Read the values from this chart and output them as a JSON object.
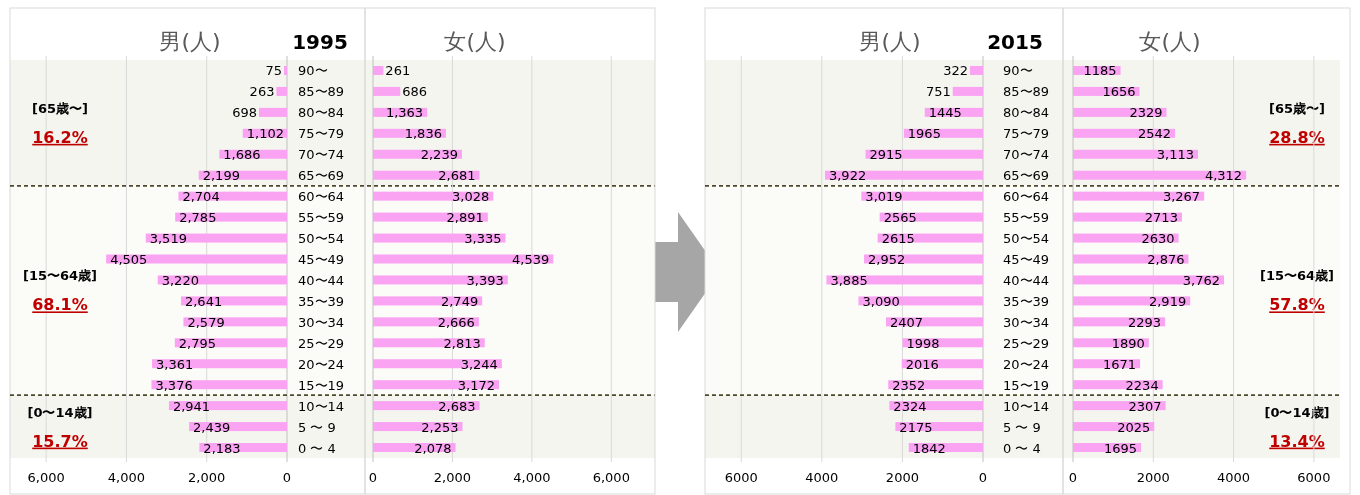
{
  "chart_data": [
    {
      "type": "bar",
      "orientation": "horizontal",
      "title": "男(人)",
      "subtitle": "1995",
      "color": "#f9a3f2",
      "grid": "x",
      "categories": [
        "90〜",
        "85〜89",
        "80〜84",
        "75〜79",
        "70〜74",
        "65〜69",
        "60〜64",
        "55〜59",
        "50〜54",
        "45〜49",
        "40〜44",
        "35〜39",
        "30〜34",
        "25〜29",
        "20〜24",
        "15〜19",
        "10〜14",
        "5 〜 9",
        "0 〜 4"
      ],
      "values": [
        75,
        263,
        698,
        1102,
        1686,
        2199,
        2704,
        2785,
        3519,
        4505,
        3220,
        2641,
        2579,
        2795,
        3361,
        3376,
        2941,
        2439,
        2183
      ],
      "value_labels": [
        "75",
        "263",
        "698",
        "1,102",
        "1,686",
        "2,199",
        "2,704",
        "2,785",
        "3,519",
        "4,505",
        "3,220",
        "2,641",
        "2,579",
        "2,795",
        "3,361",
        "3,376",
        "2,941",
        "2,439",
        "2,183"
      ],
      "xlim": [
        6900,
        0
      ],
      "xticks": [
        {
          "value": 6000,
          "label": "6,000"
        },
        {
          "value": 4000,
          "label": "4,000"
        },
        {
          "value": 2000,
          "label": "2,000"
        },
        0
      ],
      "bands": [
        {
          "axis": "y",
          "from": "90〜",
          "to": "65〜69",
          "label": "[65歳〜]",
          "color": "#f5f5f0"
        },
        {
          "axis": "y",
          "from": "60〜64",
          "to": "15〜19",
          "label": "[15〜64歳]",
          "color": "#fbfbf8"
        },
        {
          "axis": "y",
          "from": "10〜14",
          "to": "0 〜 4",
          "label": "[0〜14歳]",
          "color": "#f5f5f0"
        }
      ],
      "annotations": [
        "16.2%",
        "68.1%",
        "15.7%"
      ]
    },
    {
      "type": "bar",
      "orientation": "horizontal",
      "title": "女(人)",
      "color": "#f9a3f2",
      "grid": "x",
      "categories": [
        null,
        null,
        null,
        null,
        null,
        null,
        null,
        null,
        null,
        null,
        null,
        null,
        null,
        null,
        null,
        null,
        null,
        null,
        null
      ],
      "values": [
        261,
        686,
        1363,
        1836,
        2239,
        2681,
        3028,
        2891,
        3335,
        4539,
        3393,
        2749,
        2666,
        2813,
        3244,
        3172,
        2683,
        2253,
        2078
      ],
      "value_labels": [
        "261",
        "686",
        "1,363",
        "1,836",
        "2,239",
        "2,681",
        "3,028",
        "2,891",
        "3,335",
        "4,539",
        "3,393",
        "2,749",
        "2,666",
        "2,813",
        "3,244",
        "3,172",
        "2,683",
        "2,253",
        "2,078"
      ],
      "xlim": [
        0,
        7100
      ],
      "xticks": [
        0,
        {
          "value": 2000,
          "label": "2,000"
        },
        {
          "value": 4000,
          "label": "4,000"
        },
        {
          "value": 6000,
          "label": "6,000"
        }
      ]
    },
    {
      "type": "bar",
      "orientation": "horizontal",
      "title": "男(人)",
      "subtitle": "2015",
      "color": "#f9a3f2",
      "grid": "x",
      "categories": [
        "90〜",
        "85〜89",
        "80〜84",
        "75〜79",
        "70〜74",
        "65〜69",
        "60〜64",
        "55〜59",
        "50〜54",
        "45〜49",
        "40〜44",
        "35〜39",
        "30〜34",
        "25〜29",
        "20〜24",
        "15〜19",
        "10〜14",
        "5 〜 9",
        "0 〜 4"
      ],
      "values": [
        322,
        751,
        1445,
        1965,
        2915,
        3922,
        3019,
        2565,
        2615,
        2952,
        3885,
        3090,
        2407,
        1998,
        2016,
        2352,
        2324,
        2175,
        1842
      ],
      "value_labels": [
        "322",
        "751",
        "1445",
        "1965",
        "2915",
        "3,922",
        "3,019",
        "2565",
        "2615",
        "2,952",
        "3,885",
        "3,090",
        "2407",
        "1998",
        "2016",
        "2352",
        "2324",
        "2175",
        "1842"
      ],
      "xlim": [
        6900,
        0
      ],
      "xticks": [
        6000,
        4000,
        2000,
        0
      ],
      "bands": [
        {
          "axis": "y",
          "from": "90〜",
          "to": "65〜69",
          "label": "[65歳〜]",
          "color": "#f5f5f0"
        },
        {
          "axis": "y",
          "from": "60〜64",
          "to": "15〜19",
          "label": "[15〜64歳]",
          "color": "#fbfbf8"
        },
        {
          "axis": "y",
          "from": "10〜14",
          "to": "0 〜 4",
          "label": "[0〜14歳]",
          "color": "#f5f5f0"
        }
      ],
      "annotations": [
        "28.8%",
        "57.8%",
        "13.4%"
      ]
    },
    {
      "type": "bar",
      "orientation": "horizontal",
      "title": "女(人)",
      "color": "#f9a3f2",
      "grid": "x",
      "categories": [
        null,
        null,
        null,
        null,
        null,
        null,
        null,
        null,
        null,
        null,
        null,
        null,
        null,
        null,
        null,
        null,
        null,
        null,
        null
      ],
      "values": [
        1185,
        1656,
        2329,
        2542,
        3113,
        4312,
        3267,
        2713,
        2630,
        2876,
        3762,
        2919,
        2293,
        1890,
        1671,
        2234,
        2307,
        2025,
        1695
      ],
      "value_labels": [
        "1185",
        "1656",
        "2329",
        "2542",
        "3,113",
        "4,312",
        "3,267",
        "2713",
        "2630",
        "2,876",
        "3,762",
        "2,919",
        "2293",
        "1890",
        "1671",
        "2234",
        "2307",
        "2025",
        "1695"
      ],
      "xlim": [
        0,
        6900
      ],
      "xticks": [
        0,
        2000,
        4000,
        6000
      ]
    }
  ]
}
